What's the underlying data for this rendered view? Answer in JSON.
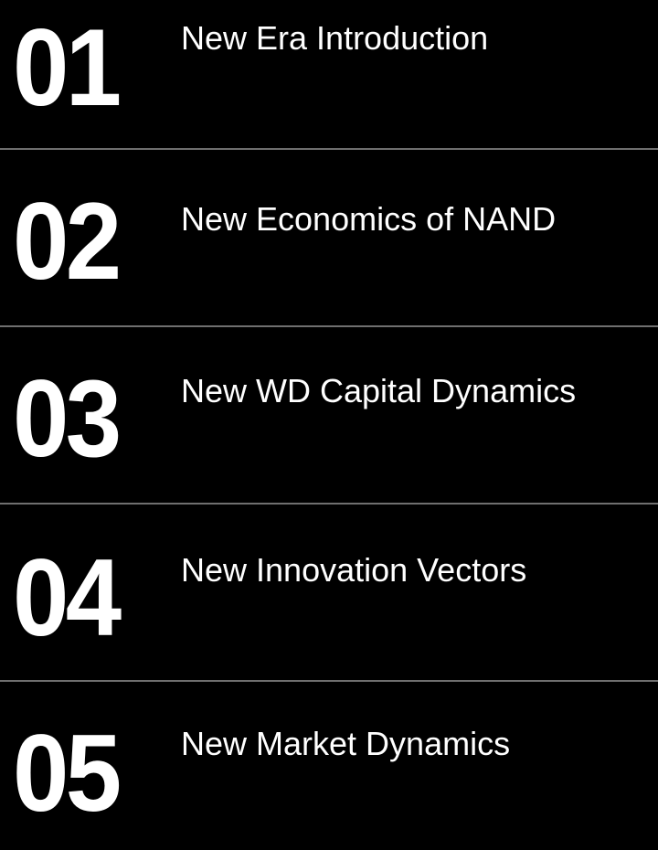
{
  "agenda": {
    "items": [
      {
        "number": "01",
        "title": "New Era Introduction"
      },
      {
        "number": "02",
        "title": "New Economics of NAND"
      },
      {
        "number": "03",
        "title": "New WD Capital Dynamics"
      },
      {
        "number": "04",
        "title": "New Innovation Vectors"
      },
      {
        "number": "05",
        "title": "New Market Dynamics"
      }
    ]
  },
  "colors": {
    "background": "#000000",
    "text": "#ffffff",
    "divider": "#6f6f6f"
  }
}
